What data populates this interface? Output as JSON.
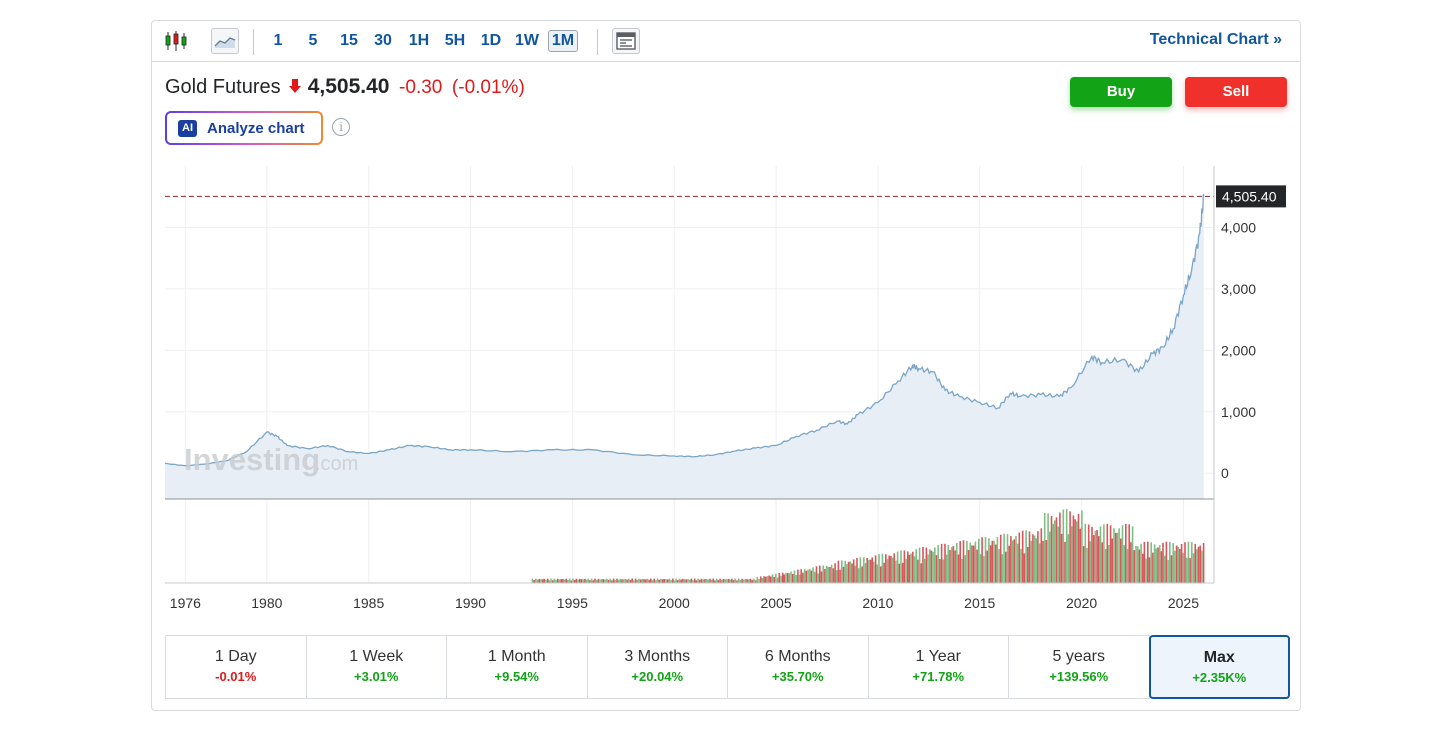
{
  "toolbar": {
    "icons": [
      "candlestick-icon",
      "area-chart-icon",
      "table-view-icon"
    ],
    "timeframes": [
      "1",
      "5",
      "15",
      "30",
      "1H",
      "5H",
      "1D",
      "1W",
      "1M"
    ],
    "active_timeframe": "1M",
    "tech_link": "Technical Chart",
    "tech_link_chevron": "»"
  },
  "instrument": {
    "name": "Gold Futures",
    "price": "4,505.40",
    "change": "-0.30",
    "change_pct": "(-0.01%)",
    "direction_icon": "arrow-down-icon"
  },
  "actions": {
    "buy": "Buy",
    "sell": "Sell"
  },
  "analyze": {
    "badge": "AI",
    "label": "Analyze chart",
    "info": "i"
  },
  "colors": {
    "up": "#12a316",
    "down": "#e0191b",
    "link": "#1256a0",
    "line": "#7aa6c8",
    "area": "#e8eef6",
    "vol_up": "#7fbf86",
    "vol_down": "#d9555a"
  },
  "watermark": {
    "brand": "Investing",
    "suffix": ".com"
  },
  "chart_data": {
    "type": "area",
    "series": [
      {
        "x": [
          1975,
          1976,
          1977,
          1978,
          1979,
          1980,
          1980.5,
          1981,
          1982,
          1983,
          1984,
          1985,
          1986,
          1987,
          1988,
          1989,
          1990,
          1992,
          1994,
          1996,
          1998,
          2000,
          2001,
          2002,
          2003,
          2004,
          2005,
          2006,
          2007,
          2008,
          2008.5,
          2009,
          2010,
          2011,
          2011.7,
          2012,
          2012.7,
          2013.3,
          2014,
          2015,
          2015.9,
          2016.5,
          2017,
          2018,
          2018.9,
          2019.5,
          2020.5,
          2021,
          2022,
          2022.8,
          2023.5,
          2024,
          2024.5,
          2025,
          2025.4,
          2025.8,
          2026
        ],
        "y": [
          160,
          120,
          150,
          200,
          350,
          670,
          600,
          450,
          400,
          450,
          350,
          320,
          380,
          450,
          430,
          380,
          380,
          350,
          380,
          380,
          300,
          280,
          270,
          300,
          360,
          410,
          450,
          600,
          700,
          850,
          800,
          950,
          1150,
          1500,
          1750,
          1700,
          1650,
          1350,
          1250,
          1150,
          1060,
          1300,
          1250,
          1280,
          1250,
          1400,
          1900,
          1800,
          1850,
          1650,
          1950,
          2050,
          2350,
          2900,
          3300,
          3900,
          4505.4
        ]
      }
    ],
    "volume_x_start": 1993,
    "volume_x_end": 2026,
    "ylim": [
      -420,
      5000
    ],
    "xlim": [
      1975,
      2026.5
    ],
    "y_ticks": [
      "0",
      "1,000",
      "2,000",
      "3,000",
      "4,000"
    ],
    "x_ticks": [
      "1976",
      "1980",
      "1985",
      "1990",
      "1995",
      "2000",
      "2005",
      "2010",
      "2015",
      "2020",
      "2025"
    ],
    "last_price_label": "4,505.40",
    "last_price": 4505.4
  },
  "periods": [
    {
      "label": "1 Day",
      "value": "-0.01%",
      "dir": "down"
    },
    {
      "label": "1 Week",
      "value": "+3.01%",
      "dir": "up"
    },
    {
      "label": "1 Month",
      "value": "+9.54%",
      "dir": "up"
    },
    {
      "label": "3 Months",
      "value": "+20.04%",
      "dir": "up"
    },
    {
      "label": "6 Months",
      "value": "+35.70%",
      "dir": "up"
    },
    {
      "label": "1 Year",
      "value": "+71.78%",
      "dir": "up"
    },
    {
      "label": "5 years",
      "value": "+139.56%",
      "dir": "up"
    },
    {
      "label": "Max",
      "value": "+2.35K%",
      "dir": "up",
      "selected": true
    }
  ]
}
